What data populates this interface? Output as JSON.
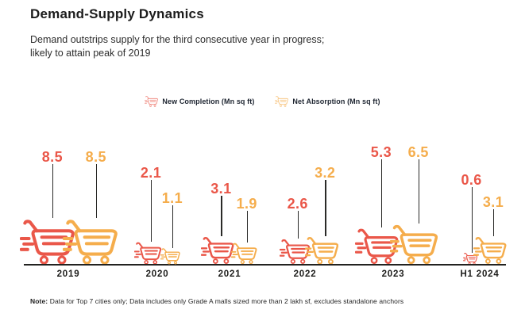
{
  "header": {
    "title": "Demand-Supply Dynamics",
    "subtitle_line1": "Demand outstrips supply for the third consecutive year in progress;",
    "subtitle_line2": "likely to attain peak of 2019"
  },
  "legend": [
    {
      "icon": "cart-icon",
      "label": "New Completion (Mn sq ft)",
      "color": "#ea5749"
    },
    {
      "icon": "cart-icon",
      "label": "Net Absorption (Mn sq ft)",
      "color": "#f5ad4c"
    }
  ],
  "chart_data": {
    "type": "pictorial-bar",
    "icon": "shopping-cart",
    "unit": "Mn sq ft",
    "categories": [
      "2019",
      "2020",
      "2021",
      "2022",
      "2023",
      "H1 2024"
    ],
    "series": [
      {
        "name": "New Completion (Mn sq ft)",
        "color": "#ea5749",
        "values": [
          8.5,
          2.1,
          3.1,
          2.6,
          5.3,
          0.6
        ]
      },
      {
        "name": "Net Absorption (Mn sq ft)",
        "color": "#f5ad4c",
        "values": [
          8.5,
          1.1,
          1.9,
          3.2,
          6.5,
          3.1
        ]
      }
    ],
    "baseline_axis": true,
    "legend_position": "top-center"
  },
  "note": {
    "prefix": "Note:",
    "text": "Data for Top 7 cities only; Data includes only Grade A malls sized more than 2 lakh sf, excludes standalone anchors"
  }
}
